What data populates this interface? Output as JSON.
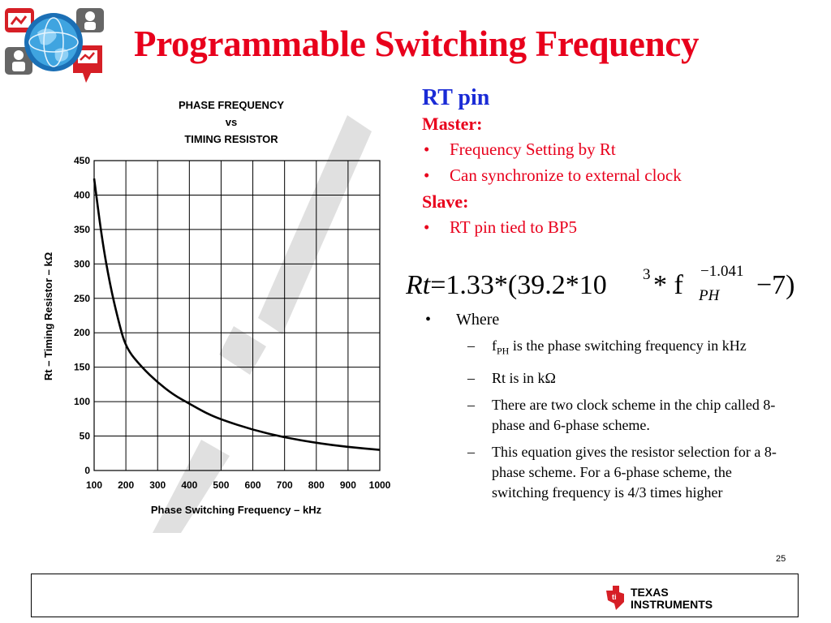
{
  "title": "Programmable Switching Frequency",
  "chart_data": {
    "type": "line",
    "title": [
      "PHASE FREQUENCY",
      "vs",
      "TIMING RESISTOR"
    ],
    "xlabel": "Phase Switching Frequency – kHz",
    "ylabel": "Rt – Timing Resistor – kΩ",
    "xlim": [
      100,
      1000
    ],
    "ylim": [
      0,
      450
    ],
    "xticks": [
      100,
      200,
      300,
      400,
      500,
      600,
      700,
      800,
      900,
      1000
    ],
    "yticks": [
      0,
      50,
      100,
      150,
      200,
      250,
      300,
      350,
      400,
      450
    ],
    "grid": true,
    "series": [
      {
        "x": [
          100,
          125,
          150,
          175,
          200,
          250,
          300,
          350,
          400,
          450,
          500,
          600,
          700,
          800,
          900,
          1000
        ],
        "y": [
          424,
          335,
          270,
          220,
          178,
          150,
          128,
          110,
          97,
          84,
          74,
          59,
          48,
          40,
          34,
          30
        ]
      }
    ]
  },
  "right": {
    "heading": "RT pin",
    "master_label": "Master:",
    "master_items": [
      "Frequency Setting by Rt",
      "Can synchronize to external clock"
    ],
    "slave_label": "Slave:",
    "slave_items": [
      "RT pin tied to BP5"
    ]
  },
  "equation": {
    "lhs": "Rt",
    "eq": "=1.33*(39.2*10",
    "exp1": "3",
    "mid": " * f",
    "sub": "PH",
    "exp2": "−1.041",
    "end": "−7)"
  },
  "where": {
    "label": "Where",
    "item1_pre": "f",
    "item1_sub": "PH",
    "item1_post": " is the phase switching frequency in kHz",
    "items": [
      "Rt is in kΩ",
      "There are two clock scheme in the chip called 8-phase and 6-phase scheme.",
      "This equation gives the resistor selection for a 8-phase scheme. For a 6-phase scheme, the switching frequency is 4/3 times higher"
    ]
  },
  "slide_number": "25",
  "footer": {
    "brand_line1": "Texas",
    "brand_line2": "Instruments"
  }
}
